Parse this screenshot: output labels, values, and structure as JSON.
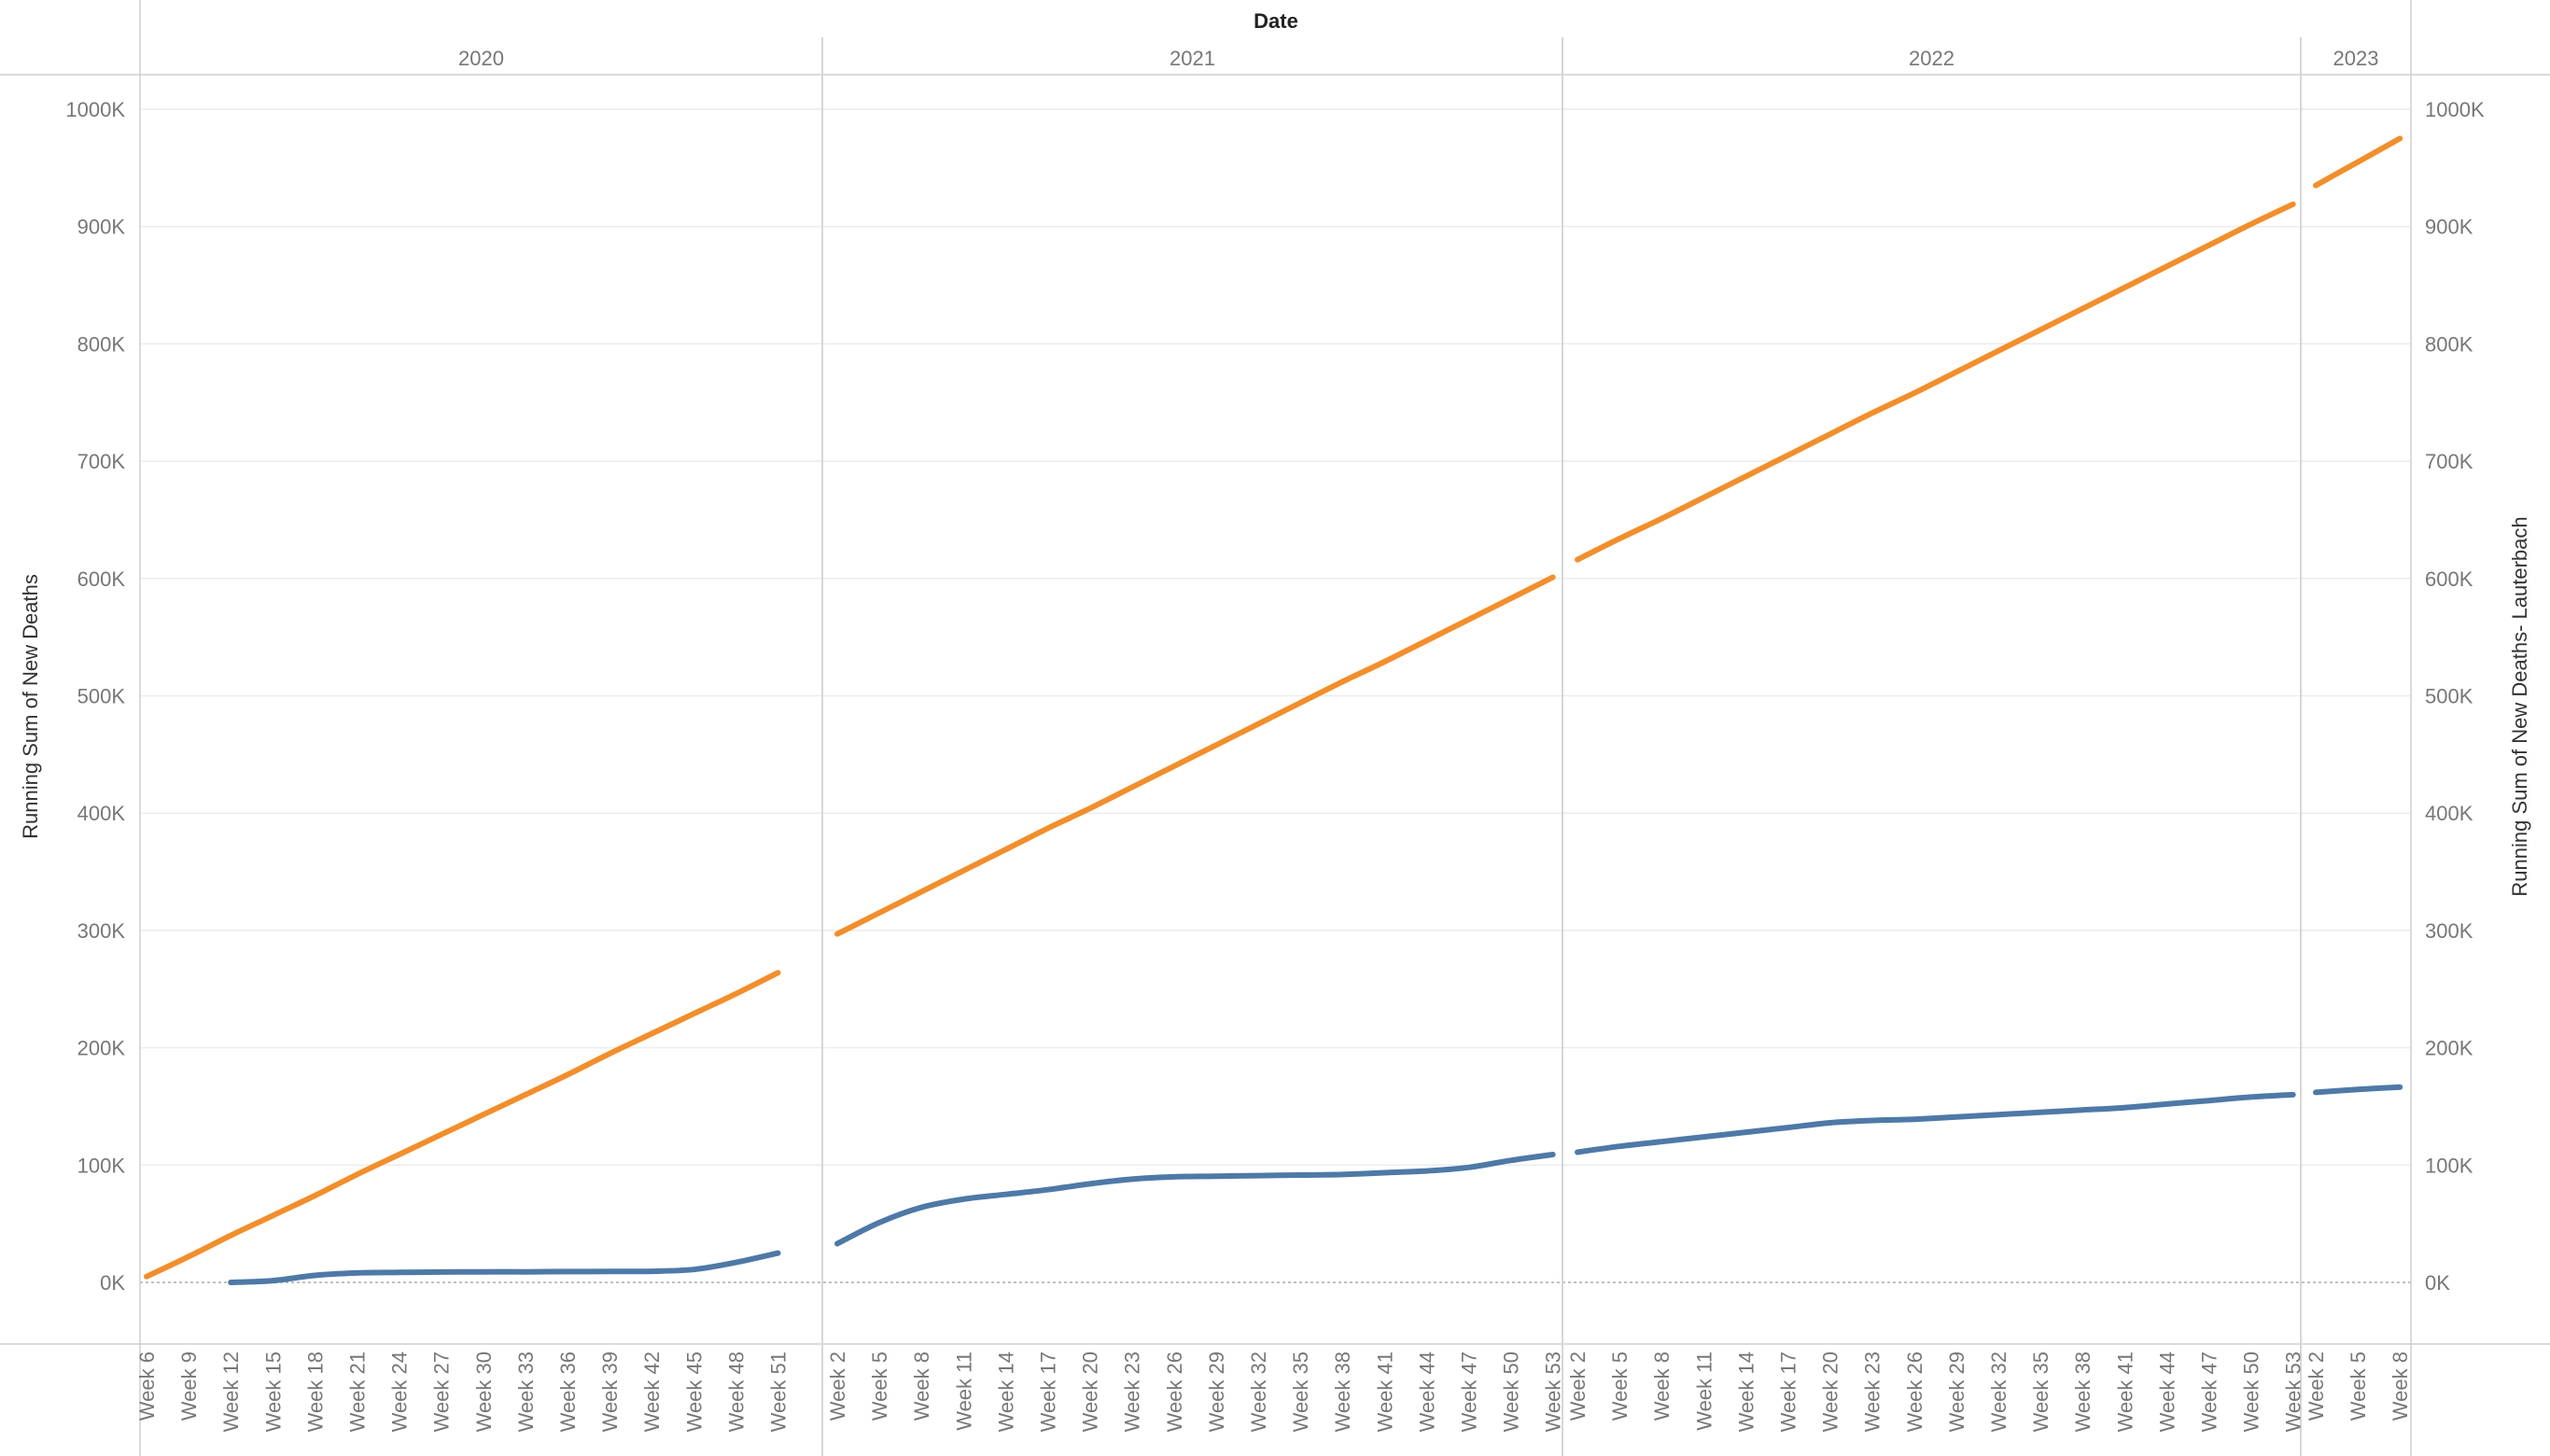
{
  "chart_data": {
    "type": "line",
    "title": "",
    "header_title": "Date",
    "ylabel_left": "Running Sum of New Deaths",
    "ylabel_right": "Running Sum of New Deaths- Lauterbach",
    "ylim": [
      0,
      1000000
    ],
    "yticks": [
      0,
      100000,
      200000,
      300000,
      400000,
      500000,
      600000,
      700000,
      800000,
      900000,
      1000000
    ],
    "ytick_labels": [
      "0K",
      "100K",
      "200K",
      "300K",
      "400K",
      "500K",
      "600K",
      "700K",
      "800K",
      "900K",
      "1000K"
    ],
    "grid": true,
    "colors": {
      "orange": "#F28E2B",
      "blue": "#4E79A7"
    },
    "years": [
      {
        "year": "2020",
        "week_labels": [
          "Week 6",
          "Week 9",
          "Week 12",
          "Week 15",
          "Week 18",
          "Week 21",
          "Week 24",
          "Week 27",
          "Week 30",
          "Week 33",
          "Week 36",
          "Week 39",
          "Week 42",
          "Week 45",
          "Week 48",
          "Week 51"
        ],
        "weeks": [
          6,
          9,
          12,
          15,
          18,
          21,
          24,
          27,
          30,
          33,
          36,
          39,
          42,
          45,
          48,
          51
        ],
        "orange": [
          5000,
          22000,
          40000,
          57000,
          74000,
          92000,
          109000,
          126000,
          143000,
          160000,
          177000,
          195000,
          212000,
          229000,
          246000,
          264000
        ],
        "blue": [
          null,
          null,
          0,
          1500,
          6000,
          8000,
          8500,
          8800,
          9000,
          9000,
          9200,
          9300,
          9500,
          11000,
          17000,
          25000
        ]
      },
      {
        "year": "2021",
        "week_labels": [
          "Week 2",
          "Week 5",
          "Week 8",
          "Week 11",
          "Week 14",
          "Week 17",
          "Week 20",
          "Week 23",
          "Week 26",
          "Week 29",
          "Week 32",
          "Week 35",
          "Week 38",
          "Week 41",
          "Week 44",
          "Week 47",
          "Week 50",
          "Week 53"
        ],
        "weeks": [
          2,
          5,
          8,
          11,
          14,
          17,
          20,
          23,
          26,
          29,
          32,
          35,
          38,
          41,
          44,
          47,
          50,
          53
        ],
        "orange": [
          297000,
          315000,
          333000,
          351000,
          369000,
          387000,
          404000,
          422000,
          440000,
          458000,
          476000,
          494000,
          512000,
          529000,
          547000,
          565000,
          583000,
          601000
        ],
        "blue": [
          33000,
          51000,
          64000,
          71000,
          75000,
          79000,
          84000,
          88000,
          90000,
          90500,
          91000,
          91500,
          92000,
          93500,
          95000,
          98000,
          104000,
          109000
        ]
      },
      {
        "year": "2022",
        "week_labels": [
          "Week 2",
          "Week 5",
          "Week 8",
          "Week 11",
          "Week 14",
          "Week 17",
          "Week 20",
          "Week 23",
          "Week 26",
          "Week 29",
          "Week 32",
          "Week 35",
          "Week 38",
          "Week 41",
          "Week 44",
          "Week 47",
          "Week 50",
          "Week 53"
        ],
        "weeks": [
          2,
          5,
          8,
          11,
          14,
          17,
          20,
          23,
          26,
          29,
          32,
          35,
          38,
          41,
          44,
          47,
          50,
          53
        ],
        "orange": [
          616000,
          634000,
          651000,
          669000,
          687000,
          705000,
          723000,
          741000,
          758000,
          776000,
          794000,
          812000,
          830000,
          848000,
          866000,
          884000,
          902000,
          919000
        ],
        "blue": [
          111000,
          116000,
          120000,
          124000,
          128000,
          132000,
          136000,
          138000,
          139000,
          141000,
          143000,
          145000,
          147000,
          149000,
          152000,
          155000,
          158000,
          160000
        ]
      },
      {
        "year": "2023",
        "week_labels": [
          "Week 2",
          "Week 5",
          "Week 8"
        ],
        "weeks": [
          2,
          5,
          8
        ],
        "orange": [
          935000,
          955000,
          975000
        ],
        "blue": [
          162000,
          164500,
          166500
        ]
      }
    ]
  }
}
